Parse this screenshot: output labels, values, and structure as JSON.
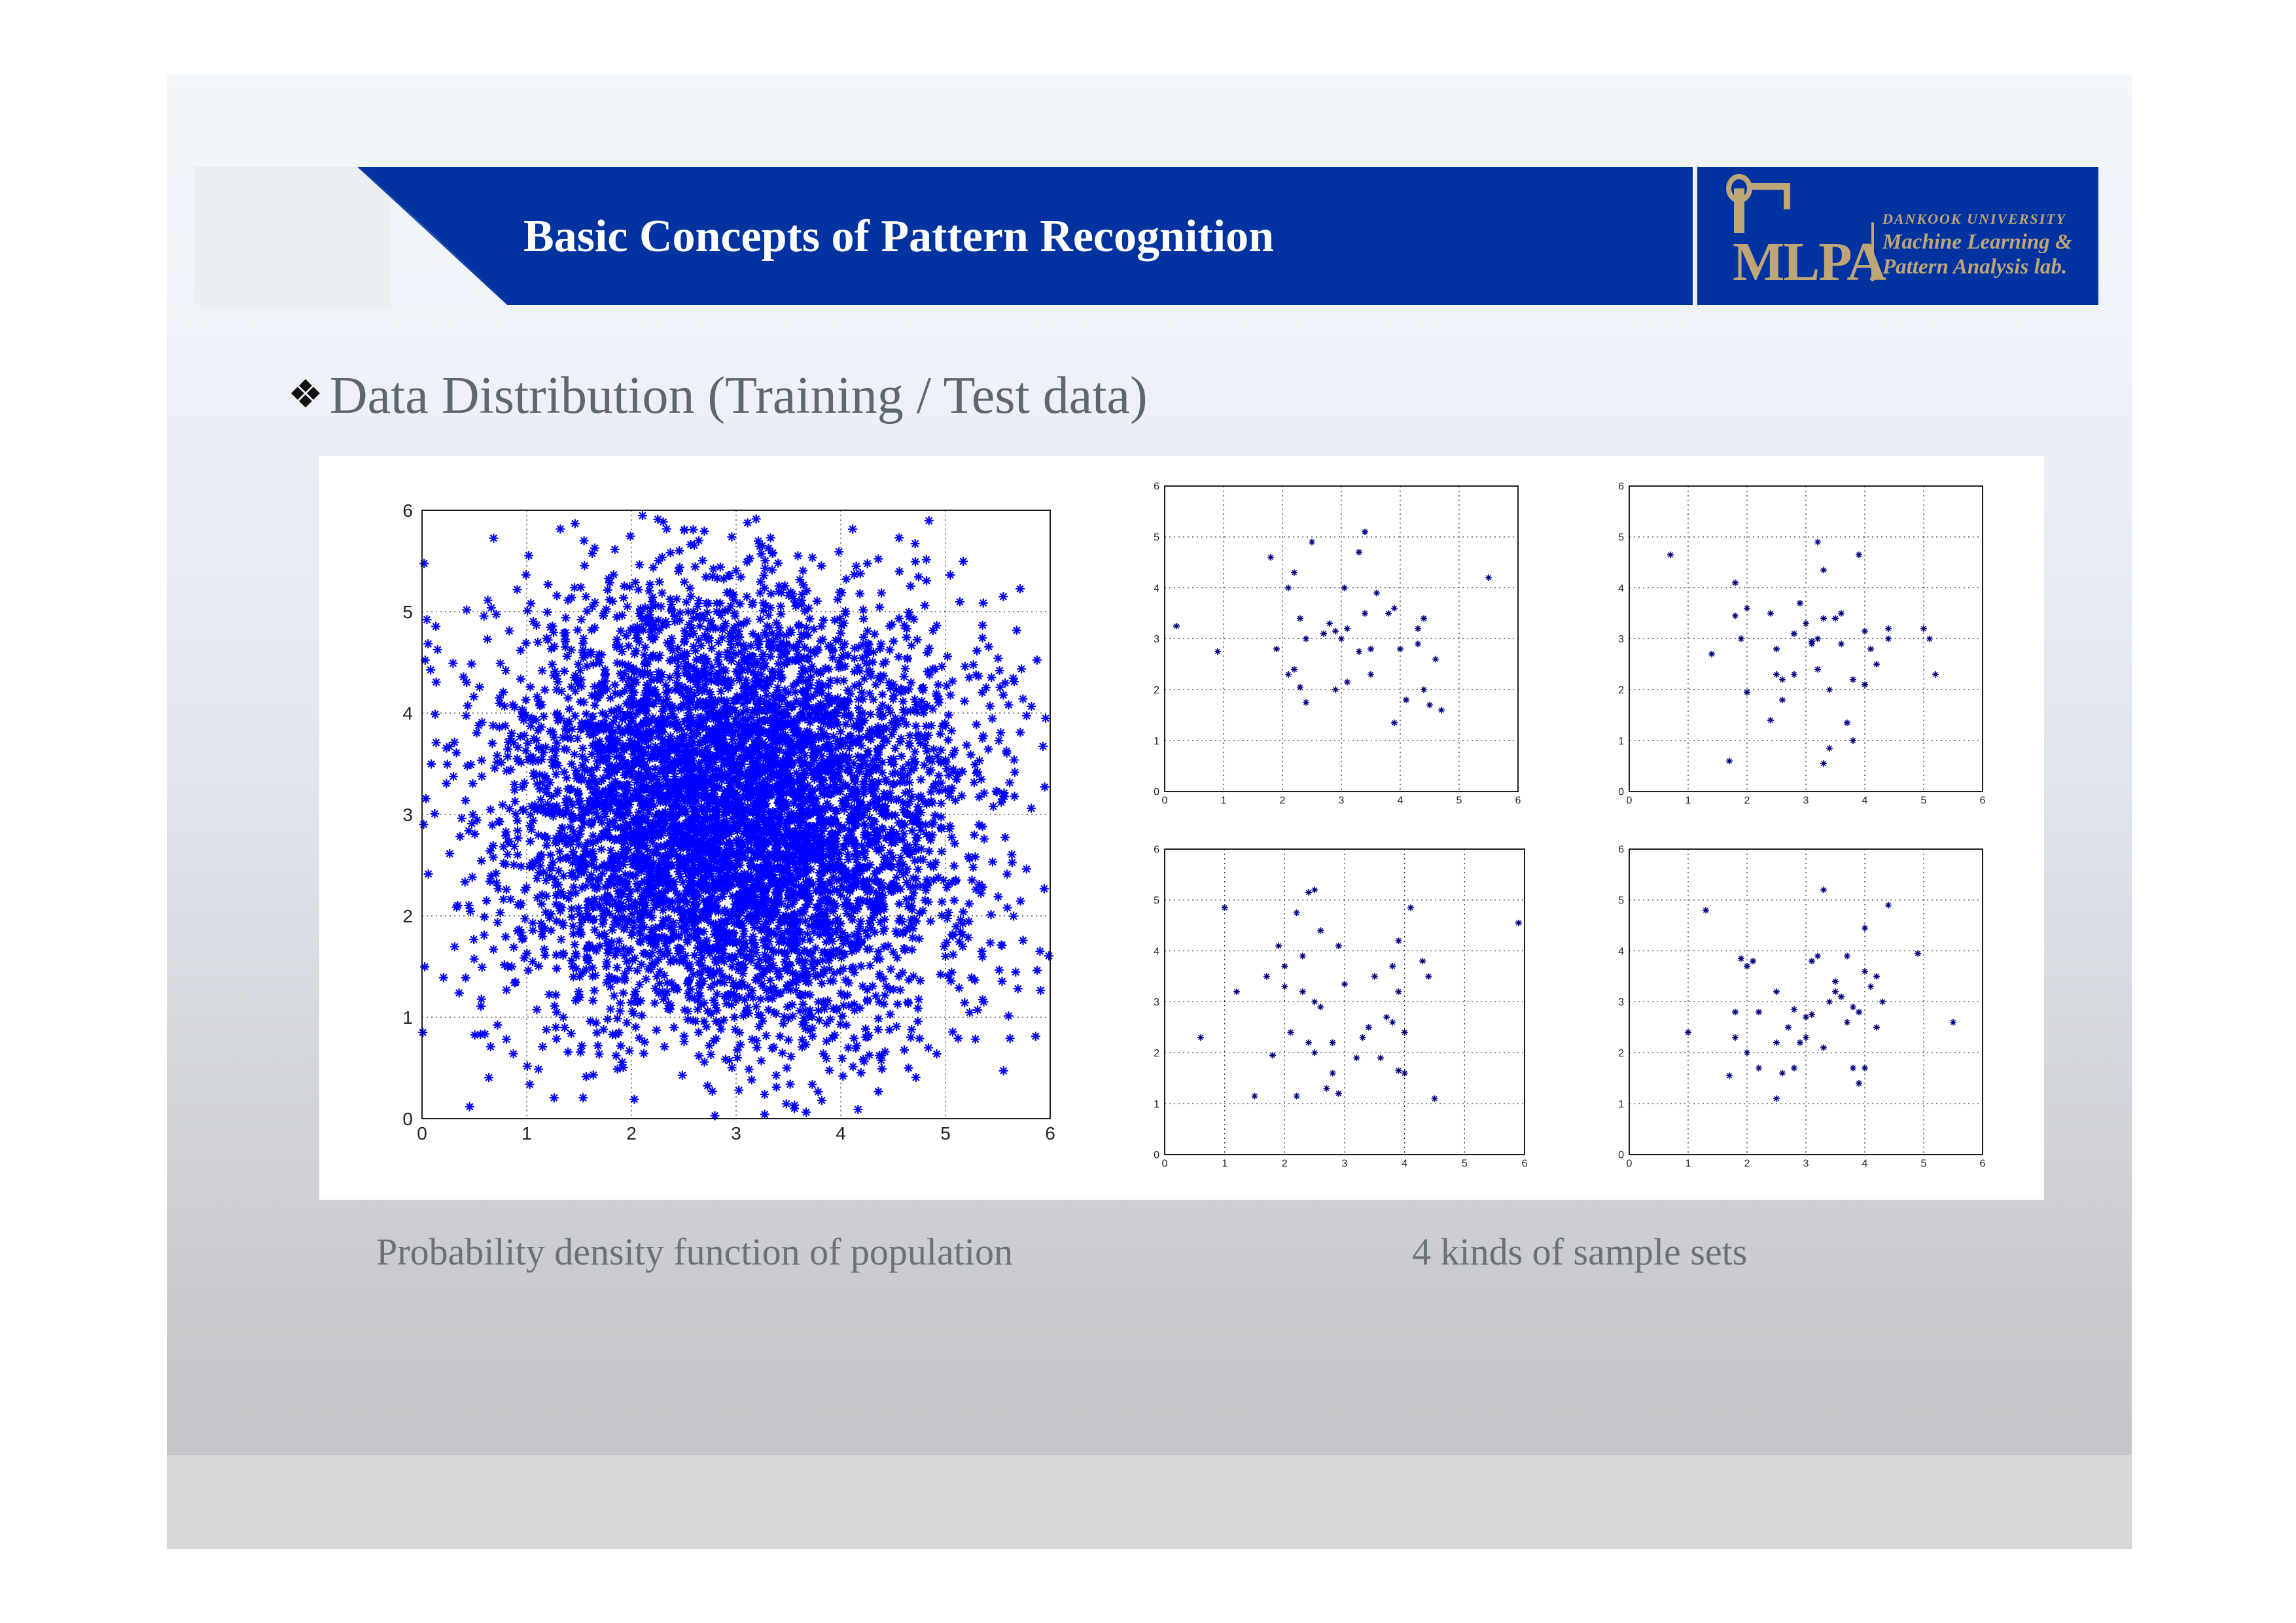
{
  "header": {
    "title": "Basic Concepts of Pattern Recognition",
    "logo_text": "MLPA",
    "logo_university": "DANKOOK UNIVERSITY",
    "logo_lab_line1": "Machine Learning &",
    "logo_lab_line2": "Pattern Analysis lab."
  },
  "bullet": {
    "icon": "four-diamond-bullet-icon",
    "text": "Data Distribution (Training / Test data)"
  },
  "captions": {
    "left": "Probability density function of population",
    "right": "4 kinds of sample sets"
  },
  "colors": {
    "header_blue": "#0033a0",
    "logo_gold": "#bfa677",
    "marker_blue": "#0000ff",
    "marker_navy": "#000080"
  },
  "chart_data": [
    {
      "type": "scatter",
      "id": "population",
      "marker": "*",
      "distribution": {
        "kind": "gaussian",
        "mean": [
          3,
          3
        ],
        "std": [
          1.1,
          1.1
        ],
        "count": 6000
      },
      "xlim": [
        0,
        6
      ],
      "ylim": [
        0,
        6
      ],
      "xticks": [
        0,
        1,
        2,
        3,
        4,
        5,
        6
      ],
      "yticks": [
        0,
        1,
        2,
        3,
        4,
        5,
        6
      ],
      "grid": true
    },
    {
      "type": "scatter",
      "id": "sample-set-1",
      "marker": "*",
      "xlim": [
        0,
        6
      ],
      "ylim": [
        0,
        6
      ],
      "xticks": [
        0,
        1,
        2,
        3,
        4,
        5,
        6
      ],
      "yticks": [
        0,
        1,
        2,
        3,
        4,
        5,
        6
      ],
      "grid": true,
      "points": [
        [
          0.2,
          3.25
        ],
        [
          0.9,
          2.75
        ],
        [
          1.8,
          4.6
        ],
        [
          1.9,
          2.8
        ],
        [
          2.1,
          4.0
        ],
        [
          2.2,
          4.3
        ],
        [
          2.2,
          2.4
        ],
        [
          2.3,
          3.4
        ],
        [
          2.3,
          2.05
        ],
        [
          2.4,
          3.0
        ],
        [
          2.4,
          1.75
        ],
        [
          2.5,
          4.9
        ],
        [
          2.7,
          3.1
        ],
        [
          2.8,
          3.3
        ],
        [
          2.9,
          3.15
        ],
        [
          2.9,
          2.0
        ],
        [
          3.0,
          3.0
        ],
        [
          3.05,
          4.0
        ],
        [
          3.1,
          3.2
        ],
        [
          3.1,
          2.15
        ],
        [
          3.3,
          4.7
        ],
        [
          3.3,
          2.75
        ],
        [
          3.4,
          5.1
        ],
        [
          3.4,
          3.5
        ],
        [
          3.5,
          2.8
        ],
        [
          3.5,
          2.3
        ],
        [
          3.6,
          3.9
        ],
        [
          3.8,
          3.5
        ],
        [
          3.9,
          3.6
        ],
        [
          3.9,
          1.35
        ],
        [
          4.0,
          2.8
        ],
        [
          4.1,
          1.8
        ],
        [
          4.3,
          2.9
        ],
        [
          4.3,
          3.2
        ],
        [
          4.4,
          3.4
        ],
        [
          4.4,
          2.0
        ],
        [
          4.5,
          1.7
        ],
        [
          4.6,
          2.6
        ],
        [
          4.7,
          1.6
        ],
        [
          5.5,
          4.2
        ],
        [
          2.1,
          2.3
        ]
      ]
    },
    {
      "type": "scatter",
      "id": "sample-set-2",
      "marker": "*",
      "xlim": [
        0,
        6
      ],
      "ylim": [
        0,
        6
      ],
      "xticks": [
        0,
        1,
        2,
        3,
        4,
        5,
        6
      ],
      "yticks": [
        0,
        1,
        2,
        3,
        4,
        5,
        6
      ],
      "grid": true,
      "points": [
        [
          0.7,
          4.65
        ],
        [
          1.4,
          2.7
        ],
        [
          1.7,
          0.6
        ],
        [
          1.8,
          3.45
        ],
        [
          1.8,
          4.1
        ],
        [
          1.9,
          3.0
        ],
        [
          2.0,
          3.6
        ],
        [
          2.0,
          1.95
        ],
        [
          2.4,
          3.5
        ],
        [
          2.4,
          1.4
        ],
        [
          2.5,
          2.3
        ],
        [
          2.5,
          2.8
        ],
        [
          2.6,
          1.8
        ],
        [
          2.6,
          2.2
        ],
        [
          2.8,
          3.1
        ],
        [
          2.8,
          2.3
        ],
        [
          2.9,
          3.7
        ],
        [
          3.0,
          3.3
        ],
        [
          3.1,
          2.9
        ],
        [
          3.2,
          4.9
        ],
        [
          3.2,
          3.0
        ],
        [
          3.2,
          2.4
        ],
        [
          3.3,
          4.35
        ],
        [
          3.3,
          3.4
        ],
        [
          3.3,
          0.55
        ],
        [
          3.4,
          0.85
        ],
        [
          3.4,
          2.0
        ],
        [
          3.5,
          3.4
        ],
        [
          3.6,
          3.5
        ],
        [
          3.6,
          2.9
        ],
        [
          3.7,
          1.35
        ],
        [
          3.8,
          2.2
        ],
        [
          3.8,
          1.0
        ],
        [
          3.9,
          4.65
        ],
        [
          4.0,
          3.15
        ],
        [
          4.0,
          2.1
        ],
        [
          4.1,
          2.8
        ],
        [
          4.2,
          2.5
        ],
        [
          4.4,
          3.0
        ],
        [
          4.4,
          3.2
        ],
        [
          5.0,
          3.2
        ],
        [
          5.1,
          3.0
        ],
        [
          5.2,
          2.3
        ],
        [
          3.1,
          2.95
        ]
      ]
    },
    {
      "type": "scatter",
      "id": "sample-set-3",
      "marker": "*",
      "xlim": [
        0,
        6
      ],
      "ylim": [
        0,
        6
      ],
      "xticks": [
        0,
        1,
        2,
        3,
        4,
        5,
        6
      ],
      "yticks": [
        0,
        1,
        2,
        3,
        4,
        5,
        6
      ],
      "grid": true,
      "points": [
        [
          0.6,
          2.3
        ],
        [
          1.0,
          4.85
        ],
        [
          1.2,
          3.2
        ],
        [
          1.5,
          1.15
        ],
        [
          1.7,
          3.5
        ],
        [
          1.8,
          1.95
        ],
        [
          1.9,
          4.1
        ],
        [
          2.0,
          3.7
        ],
        [
          2.0,
          3.3
        ],
        [
          2.1,
          2.4
        ],
        [
          2.2,
          4.75
        ],
        [
          2.2,
          1.15
        ],
        [
          2.3,
          3.9
        ],
        [
          2.3,
          3.2
        ],
        [
          2.4,
          5.15
        ],
        [
          2.4,
          2.2
        ],
        [
          2.5,
          2.0
        ],
        [
          2.5,
          5.2
        ],
        [
          2.5,
          3.0
        ],
        [
          2.6,
          2.9
        ],
        [
          2.6,
          4.4
        ],
        [
          2.7,
          1.3
        ],
        [
          2.8,
          1.6
        ],
        [
          2.8,
          2.2
        ],
        [
          2.9,
          1.2
        ],
        [
          2.9,
          4.1
        ],
        [
          3.0,
          3.35
        ],
        [
          3.2,
          1.9
        ],
        [
          3.3,
          2.3
        ],
        [
          3.4,
          2.5
        ],
        [
          3.5,
          3.5
        ],
        [
          3.6,
          1.9
        ],
        [
          3.7,
          2.7
        ],
        [
          3.8,
          2.6
        ],
        [
          3.8,
          3.7
        ],
        [
          3.9,
          1.65
        ],
        [
          3.9,
          3.2
        ],
        [
          3.9,
          4.2
        ],
        [
          4.0,
          2.4
        ],
        [
          4.0,
          1.6
        ],
        [
          4.1,
          4.85
        ],
        [
          4.3,
          3.8
        ],
        [
          4.4,
          3.5
        ],
        [
          4.5,
          1.1
        ],
        [
          5.9,
          4.55
        ]
      ]
    },
    {
      "type": "scatter",
      "id": "sample-set-4",
      "marker": "*",
      "xlim": [
        0,
        6
      ],
      "ylim": [
        0,
        6
      ],
      "xticks": [
        0,
        1,
        2,
        3,
        4,
        5,
        6
      ],
      "yticks": [
        0,
        1,
        2,
        3,
        4,
        5,
        6
      ],
      "grid": true,
      "points": [
        [
          1.0,
          2.4
        ],
        [
          1.3,
          4.8
        ],
        [
          1.7,
          1.55
        ],
        [
          1.8,
          2.3
        ],
        [
          1.8,
          2.8
        ],
        [
          1.9,
          3.85
        ],
        [
          2.0,
          3.7
        ],
        [
          2.0,
          2.0
        ],
        [
          2.1,
          3.8
        ],
        [
          2.2,
          2.8
        ],
        [
          2.2,
          1.7
        ],
        [
          2.5,
          2.2
        ],
        [
          2.5,
          3.2
        ],
        [
          2.5,
          1.1
        ],
        [
          2.6,
          1.6
        ],
        [
          2.7,
          2.5
        ],
        [
          2.8,
          2.85
        ],
        [
          2.8,
          1.7
        ],
        [
          2.9,
          2.2
        ],
        [
          3.0,
          2.3
        ],
        [
          3.0,
          2.7
        ],
        [
          3.1,
          3.8
        ],
        [
          3.1,
          2.75
        ],
        [
          3.2,
          3.9
        ],
        [
          3.3,
          5.2
        ],
        [
          3.3,
          2.1
        ],
        [
          3.4,
          3.0
        ],
        [
          3.5,
          3.2
        ],
        [
          3.5,
          3.4
        ],
        [
          3.6,
          3.1
        ],
        [
          3.7,
          3.9
        ],
        [
          3.7,
          2.6
        ],
        [
          3.8,
          1.7
        ],
        [
          3.8,
          2.9
        ],
        [
          3.9,
          1.4
        ],
        [
          3.9,
          2.8
        ],
        [
          4.0,
          1.7
        ],
        [
          4.0,
          4.45
        ],
        [
          4.0,
          3.6
        ],
        [
          4.1,
          3.3
        ],
        [
          4.2,
          3.5
        ],
        [
          4.2,
          2.5
        ],
        [
          4.3,
          3.0
        ],
        [
          4.4,
          4.9
        ],
        [
          4.9,
          3.95
        ],
        [
          5.5,
          2.6
        ]
      ]
    }
  ]
}
